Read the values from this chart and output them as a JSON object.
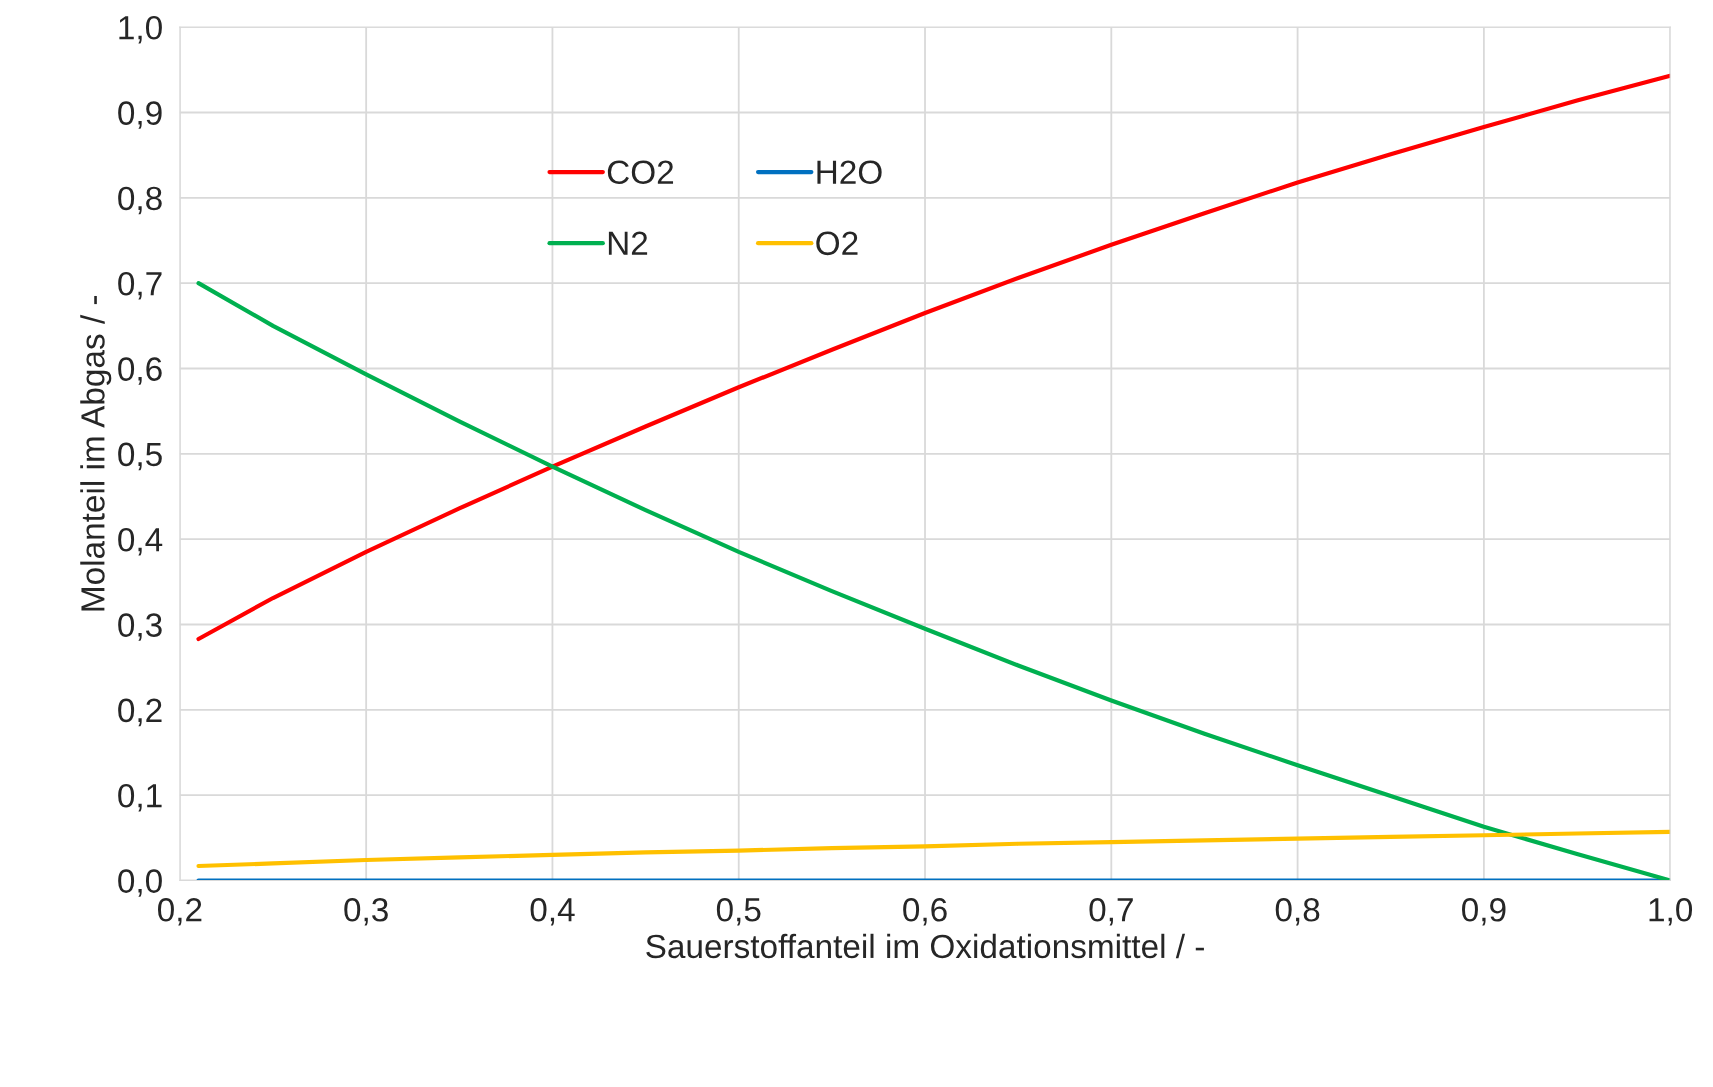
{
  "chart_data": {
    "type": "line",
    "xlabel": "Sauerstoffanteil im Oxidationsmittel / -",
    "ylabel": "Molanteil im Abgas / -",
    "x": [
      0.21,
      0.25,
      0.3,
      0.35,
      0.4,
      0.45,
      0.5,
      0.55,
      0.6,
      0.65,
      0.7,
      0.75,
      0.8,
      0.85,
      0.9,
      0.95,
      1.0
    ],
    "series": [
      {
        "name": "CO2",
        "color": "#ff0000",
        "values": [
          0.283,
          0.331,
          0.385,
          0.436,
          0.485,
          0.532,
          0.578,
          0.622,
          0.665,
          0.706,
          0.745,
          0.782,
          0.818,
          0.851,
          0.883,
          0.914,
          0.943
        ]
      },
      {
        "name": "H2O",
        "color": "#0070c0",
        "values": [
          0,
          0,
          0,
          0,
          0,
          0,
          0,
          0,
          0,
          0,
          0,
          0,
          0,
          0,
          0,
          0,
          0
        ]
      },
      {
        "name": "N2",
        "color": "#00b050",
        "values": [
          0.7,
          0.65,
          0.593,
          0.538,
          0.485,
          0.434,
          0.385,
          0.339,
          0.295,
          0.252,
          0.211,
          0.172,
          0.135,
          0.099,
          0.063,
          0.031,
          0.0
        ]
      },
      {
        "name": "O2",
        "color": "#ffc000",
        "values": [
          0.017,
          0.02,
          0.024,
          0.027,
          0.03,
          0.033,
          0.035,
          0.038,
          0.04,
          0.043,
          0.045,
          0.047,
          0.049,
          0.051,
          0.053,
          0.055,
          0.057
        ]
      }
    ],
    "xlim": [
      0.2,
      1.0
    ],
    "ylim": [
      0.0,
      1.0
    ],
    "xticks": [
      {
        "value": 0.2,
        "label": "0,2"
      },
      {
        "value": 0.3,
        "label": "0,3"
      },
      {
        "value": 0.4,
        "label": "0,4"
      },
      {
        "value": 0.5,
        "label": "0,5"
      },
      {
        "value": 0.6,
        "label": "0,6"
      },
      {
        "value": 0.7,
        "label": "0,7"
      },
      {
        "value": 0.8,
        "label": "0,8"
      },
      {
        "value": 0.9,
        "label": "0,9"
      },
      {
        "value": 1.0,
        "label": "1,0"
      }
    ],
    "yticks": [
      {
        "value": 0.0,
        "label": "0,0"
      },
      {
        "value": 0.1,
        "label": "0,1"
      },
      {
        "value": 0.2,
        "label": "0,2"
      },
      {
        "value": 0.3,
        "label": "0,3"
      },
      {
        "value": 0.4,
        "label": "0,4"
      },
      {
        "value": 0.5,
        "label": "0,5"
      },
      {
        "value": 0.6,
        "label": "0,6"
      },
      {
        "value": 0.7,
        "label": "0,7"
      },
      {
        "value": 0.8,
        "label": "0,8"
      },
      {
        "value": 0.9,
        "label": "0,9"
      },
      {
        "value": 1.0,
        "label": "1,0"
      }
    ],
    "grid": true,
    "legend": "top",
    "marker": "none",
    "line_style": "solid"
  }
}
